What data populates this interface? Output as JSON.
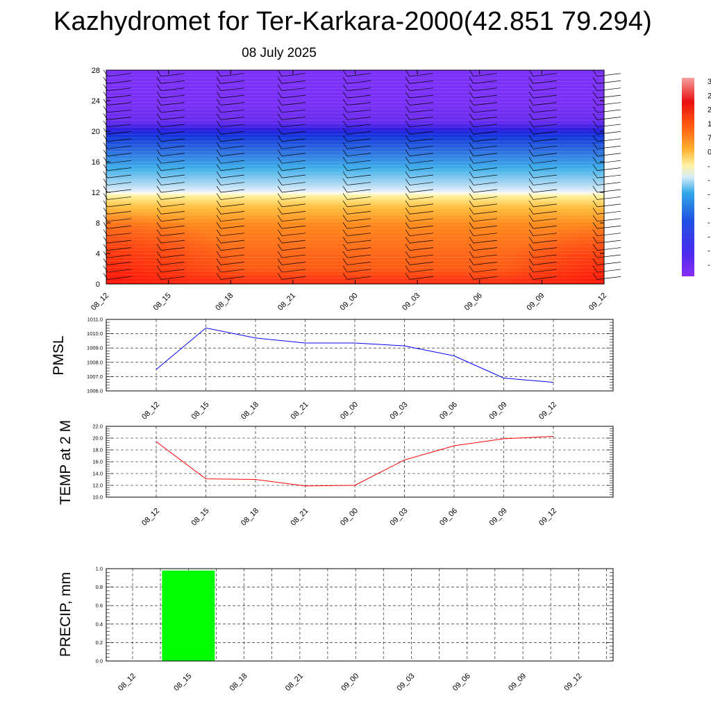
{
  "header": {
    "title": "Kazhydromet for Ter-Karkara-2000(42.851 79.294)",
    "date": "08 July 2025"
  },
  "colors": {
    "pmsl_line": "#0000ff",
    "temp_line": "#ff0000",
    "precip_bar": "#00ff00"
  },
  "chart_data": [
    {
      "type": "heatmap",
      "name": "vertical cross-section",
      "x": [
        "08_12",
        "08_15",
        "08_18",
        "08_21",
        "09_00",
        "09_03",
        "09_06",
        "09_09",
        "09_12"
      ],
      "ylim": [
        0,
        28
      ],
      "y_ticks": [
        "0",
        "4",
        "8",
        "12",
        "16",
        "20",
        "24",
        "28"
      ],
      "colorbar_labels": [
        "3",
        "2",
        "2",
        "1",
        "7",
        "0",
        "-",
        "-",
        "-",
        "-",
        "-",
        "-",
        "-",
        "-"
      ],
      "wind_barbs": true
    },
    {
      "type": "line",
      "ylabel": "PMSL",
      "x": [
        "08_12",
        "08_15",
        "08_18",
        "08_21",
        "09_00",
        "09_03",
        "09_06",
        "09_09",
        "09_12"
      ],
      "values": [
        1007.5,
        1010.4,
        1009.7,
        1009.35,
        1009.35,
        1009.15,
        1008.45,
        1006.9,
        1006.6
      ],
      "ylim": [
        1006.0,
        1011.0
      ],
      "y_ticks": [
        "1006.0",
        "1007.0",
        "1008.0",
        "1009.0",
        "1010.0",
        "1011.0"
      ],
      "grid": true
    },
    {
      "type": "line",
      "ylabel": "TEMP at 2 M",
      "x": [
        "08_12",
        "08_15",
        "08_18",
        "08_21",
        "09_00",
        "09_03",
        "09_06",
        "09_09",
        "09_12"
      ],
      "values": [
        19.4,
        13.1,
        13.0,
        11.9,
        12.0,
        16.3,
        18.7,
        19.9,
        20.3
      ],
      "ylim": [
        10.0,
        22.0
      ],
      "y_ticks": [
        "10.0",
        "12.0",
        "14.0",
        "16.0",
        "18.0",
        "20.0",
        "22.0"
      ],
      "grid": true
    },
    {
      "type": "bar",
      "ylabel": "PRECIP, mm",
      "categories": [
        "08_12",
        "08_15",
        "08_18",
        "08_21",
        "09_00",
        "09_03",
        "09_06",
        "09_09",
        "09_12"
      ],
      "values": [
        0,
        0.98,
        0,
        0,
        0,
        0,
        0,
        0,
        0
      ],
      "ylim": [
        0.0,
        1.0
      ],
      "y_ticks": [
        "0.0",
        "0.2",
        "0.4",
        "0.6",
        "0.8",
        "1.0"
      ],
      "grid": true
    }
  ]
}
